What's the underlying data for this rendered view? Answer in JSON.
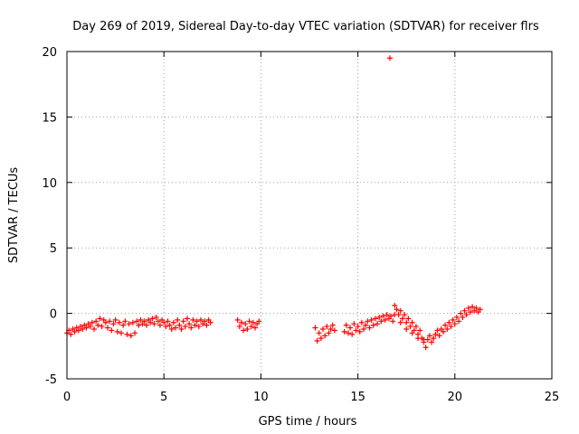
{
  "chart_data": {
    "type": "scatter",
    "title": "Day 269 of 2019, Sidereal Day-to-day VTEC variation (SDTVAR) for receiver flrs",
    "xlabel": "GPS time / hours",
    "ylabel": "SDTVAR / TECUs",
    "xlim": [
      0,
      25
    ],
    "ylim": [
      -5,
      20
    ],
    "xticks": [
      "0",
      "5",
      "10",
      "15",
      "20",
      "25"
    ],
    "yticks": [
      "-5",
      "0",
      "5",
      "10",
      "15",
      "20"
    ],
    "grid": true,
    "marker": "+",
    "color": "#ff0000",
    "points": [
      [
        0.0,
        -1.5
      ],
      [
        0.1,
        -1.3
      ],
      [
        0.2,
        -1.6
      ],
      [
        0.3,
        -1.2
      ],
      [
        0.4,
        -1.4
      ],
      [
        0.5,
        -1.1
      ],
      [
        0.6,
        -1.3
      ],
      [
        0.7,
        -1.0
      ],
      [
        0.8,
        -1.2
      ],
      [
        0.9,
        -0.9
      ],
      [
        1.0,
        -1.1
      ],
      [
        1.1,
        -0.8
      ],
      [
        1.2,
        -1.0
      ],
      [
        1.3,
        -0.7
      ],
      [
        1.4,
        -1.2
      ],
      [
        1.5,
        -0.6
      ],
      [
        1.6,
        -0.9
      ],
      [
        1.7,
        -0.4
      ],
      [
        1.8,
        -1.0
      ],
      [
        1.9,
        -0.5
      ],
      [
        2.0,
        -0.7
      ],
      [
        2.1,
        -1.1
      ],
      [
        2.2,
        -0.6
      ],
      [
        2.3,
        -1.3
      ],
      [
        2.4,
        -0.8
      ],
      [
        2.5,
        -0.5
      ],
      [
        2.6,
        -1.4
      ],
      [
        2.7,
        -0.7
      ],
      [
        2.8,
        -1.5
      ],
      [
        2.9,
        -0.9
      ],
      [
        3.0,
        -0.6
      ],
      [
        3.1,
        -1.6
      ],
      [
        3.2,
        -0.8
      ],
      [
        3.3,
        -1.7
      ],
      [
        3.4,
        -0.7
      ],
      [
        3.5,
        -1.5
      ],
      [
        3.6,
        -0.6
      ],
      [
        3.7,
        -0.9
      ],
      [
        3.8,
        -0.5
      ],
      [
        3.9,
        -0.8
      ],
      [
        4.0,
        -0.6
      ],
      [
        4.1,
        -0.9
      ],
      [
        4.2,
        -0.5
      ],
      [
        4.3,
        -0.7
      ],
      [
        4.4,
        -0.4
      ],
      [
        4.5,
        -0.8
      ],
      [
        4.6,
        -0.3
      ],
      [
        4.7,
        -0.6
      ],
      [
        4.8,
        -0.9
      ],
      [
        4.9,
        -0.5
      ],
      [
        5.0,
        -0.7
      ],
      [
        5.1,
        -1.0
      ],
      [
        5.2,
        -0.6
      ],
      [
        5.3,
        -0.9
      ],
      [
        5.4,
        -1.2
      ],
      [
        5.5,
        -0.7
      ],
      [
        5.6,
        -1.1
      ],
      [
        5.7,
        -0.5
      ],
      [
        5.8,
        -0.9
      ],
      [
        5.9,
        -1.2
      ],
      [
        6.0,
        -0.6
      ],
      [
        6.1,
        -1.0
      ],
      [
        6.2,
        -0.4
      ],
      [
        6.3,
        -0.8
      ],
      [
        6.4,
        -1.1
      ],
      [
        6.5,
        -0.5
      ],
      [
        6.6,
        -0.9
      ],
      [
        6.7,
        -0.6
      ],
      [
        6.8,
        -1.0
      ],
      [
        6.9,
        -0.5
      ],
      [
        7.0,
        -0.8
      ],
      [
        7.1,
        -0.6
      ],
      [
        7.2,
        -0.9
      ],
      [
        7.3,
        -0.5
      ],
      [
        7.4,
        -0.7
      ],
      [
        8.8,
        -0.5
      ],
      [
        8.9,
        -1.0
      ],
      [
        9.0,
        -0.7
      ],
      [
        9.1,
        -1.3
      ],
      [
        9.2,
        -0.8
      ],
      [
        9.3,
        -1.2
      ],
      [
        9.4,
        -0.6
      ],
      [
        9.5,
        -1.0
      ],
      [
        9.6,
        -0.7
      ],
      [
        9.7,
        -1.1
      ],
      [
        9.8,
        -0.8
      ],
      [
        9.9,
        -0.6
      ],
      [
        12.8,
        -1.1
      ],
      [
        12.9,
        -2.1
      ],
      [
        13.0,
        -1.5
      ],
      [
        13.1,
        -1.9
      ],
      [
        13.2,
        -1.2
      ],
      [
        13.3,
        -1.7
      ],
      [
        13.4,
        -1.0
      ],
      [
        13.5,
        -1.5
      ],
      [
        13.6,
        -1.2
      ],
      [
        13.7,
        -0.9
      ],
      [
        13.8,
        -1.3
      ],
      [
        14.3,
        -1.4
      ],
      [
        14.4,
        -0.9
      ],
      [
        14.5,
        -1.5
      ],
      [
        14.6,
        -1.1
      ],
      [
        14.7,
        -1.6
      ],
      [
        14.8,
        -0.8
      ],
      [
        14.9,
        -1.3
      ],
      [
        15.0,
        -1.0
      ],
      [
        15.1,
        -1.4
      ],
      [
        15.2,
        -0.7
      ],
      [
        15.3,
        -1.2
      ],
      [
        15.4,
        -0.9
      ],
      [
        15.5,
        -0.6
      ],
      [
        15.6,
        -1.1
      ],
      [
        15.7,
        -0.5
      ],
      [
        15.8,
        -0.9
      ],
      [
        15.9,
        -0.4
      ],
      [
        16.0,
        -0.8
      ],
      [
        16.1,
        -0.3
      ],
      [
        16.2,
        -0.6
      ],
      [
        16.3,
        -0.2
      ],
      [
        16.4,
        -0.5
      ],
      [
        16.5,
        -0.1
      ],
      [
        16.6,
        -0.4
      ],
      [
        16.7,
        -0.2
      ],
      [
        16.8,
        -0.6
      ],
      [
        16.9,
        -0.1
      ],
      [
        16.65,
        19.5
      ],
      [
        16.9,
        0.6
      ],
      [
        17.0,
        0.3
      ],
      [
        17.1,
        -0.1
      ],
      [
        17.2,
        0.2
      ],
      [
        17.3,
        -0.4
      ],
      [
        17.4,
        -0.1
      ],
      [
        17.5,
        -0.7
      ],
      [
        17.6,
        -0.4
      ],
      [
        17.7,
        -1.0
      ],
      [
        17.8,
        -0.7
      ],
      [
        17.9,
        -1.3
      ],
      [
        18.0,
        -1.0
      ],
      [
        18.1,
        -1.6
      ],
      [
        18.2,
        -1.3
      ],
      [
        18.3,
        -1.9
      ],
      [
        18.4,
        -2.2
      ],
      [
        18.5,
        -2.6
      ],
      [
        18.6,
        -2.0
      ],
      [
        18.7,
        -1.7
      ],
      [
        18.8,
        -2.2
      ],
      [
        18.9,
        -1.9
      ],
      [
        17.2,
        -0.7
      ],
      [
        17.5,
        -1.2
      ],
      [
        17.8,
        -1.5
      ],
      [
        18.1,
        -1.9
      ],
      [
        18.4,
        -2.0
      ],
      [
        19.0,
        -1.6
      ],
      [
        19.1,
        -1.3
      ],
      [
        19.2,
        -1.7
      ],
      [
        19.3,
        -1.2
      ],
      [
        19.4,
        -1.4
      ],
      [
        19.5,
        -0.9
      ],
      [
        19.6,
        -1.2
      ],
      [
        19.7,
        -0.7
      ],
      [
        19.8,
        -1.0
      ],
      [
        19.9,
        -0.5
      ],
      [
        20.0,
        -0.8
      ],
      [
        20.1,
        -0.3
      ],
      [
        20.2,
        -0.6
      ],
      [
        20.3,
        0.0
      ],
      [
        20.4,
        -0.3
      ],
      [
        20.5,
        0.2
      ],
      [
        20.6,
        -0.1
      ],
      [
        20.7,
        0.4
      ],
      [
        20.8,
        0.1
      ],
      [
        20.9,
        0.5
      ],
      [
        21.0,
        0.2
      ],
      [
        21.1,
        0.4
      ],
      [
        21.2,
        0.1
      ],
      [
        21.3,
        0.3
      ]
    ]
  }
}
